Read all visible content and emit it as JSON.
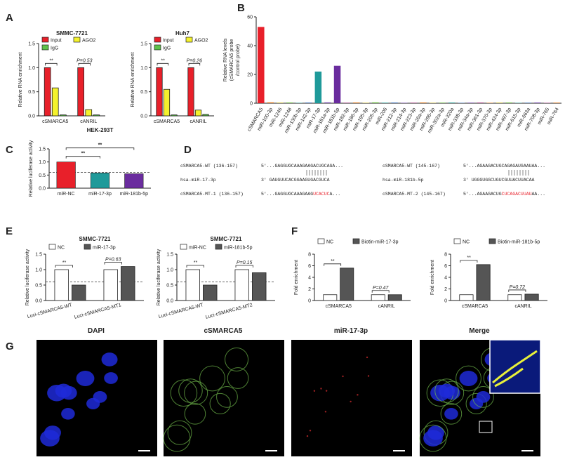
{
  "panel_labels": [
    "A",
    "B",
    "C",
    "D",
    "E",
    "F",
    "G"
  ],
  "chart_data": [
    {
      "type": "bar",
      "title": "SMMC-7721",
      "y_label": "Relative RNA enrichment",
      "categories": [
        "cSMARCA5",
        "cANRIL"
      ],
      "series": [
        {
          "name": "Input",
          "color": "#e8202a",
          "values": [
            1.0,
            1.0
          ]
        },
        {
          "name": "AGO2",
          "color": "#f4f22c",
          "values": [
            0.58,
            0.13
          ]
        },
        {
          "name": "IgG",
          "color": "#5fc24a",
          "values": [
            0.02,
            0.02
          ]
        }
      ],
      "ylim": [
        0,
        1.5
      ],
      "yticks": [
        {
          "value": 0,
          "label": "0.0"
        },
        {
          "value": 0.5,
          "label": "0.5"
        },
        {
          "value": 1,
          "label": "1.0"
        },
        {
          "value": 1.5,
          "label": "1.5"
        }
      ],
      "annotations": [
        "**",
        "P=0.53"
      ]
    },
    {
      "type": "bar",
      "title": "Huh7",
      "y_label": "Relative RNA enrichment",
      "categories": [
        "cSMARCA5",
        "cANRIL"
      ],
      "series": [
        {
          "name": "Input",
          "color": "#e8202a",
          "values": [
            1.0,
            1.0
          ]
        },
        {
          "name": "AGO2",
          "color": "#f4f22c",
          "values": [
            0.55,
            0.12
          ]
        },
        {
          "name": "IgG",
          "color": "#5fc24a",
          "values": [
            0.02,
            0.03
          ]
        }
      ],
      "ylim": [
        0,
        1.5
      ],
      "yticks": [
        {
          "value": 0,
          "label": "0.0"
        },
        {
          "value": 0.5,
          "label": "0.5"
        },
        {
          "value": 1,
          "label": "1.0"
        },
        {
          "value": 1.5,
          "label": "1.5"
        }
      ],
      "annotations": [
        "**",
        "P=0.26"
      ]
    },
    {
      "type": "bar",
      "y_label": [
        "Relative RNA levels",
        "(cSMARCA5 probe",
        "/control probe)"
      ],
      "categories": [
        "cSMARCA5",
        "miR-100-3p",
        "miR-1246",
        "miR-1248",
        "miR-130b-3p",
        "miR-142-3p",
        "miR-17-3p",
        "miR-181a-3p",
        "miR-181b-5p",
        "miR-182-3p",
        "miR-186-3p",
        "miR-195-3p",
        "miR-205-3p",
        "miR-206",
        "miR-212-3p",
        "miR-214-3p",
        "miR-223-3p",
        "miR-26a-3p",
        "miR-296-3p",
        "miR-302a-3p",
        "miR-320a",
        "miR-338-3p",
        "miR-34a-3p",
        "miR-361-3p",
        "miR-370-3p",
        "miR-424-3p",
        "miR-497-3p",
        "miR-615-3p",
        "miR-663a",
        "miR-708-3p",
        "miR-765",
        "miR-764"
      ],
      "values": [
        53,
        0.6,
        0.4,
        0.5,
        0.3,
        0.5,
        22,
        0.6,
        26,
        0.4,
        0.5,
        0.3,
        0.6,
        0.4,
        0.5,
        0.3,
        0.4,
        0.5,
        0.3,
        0.4,
        0.5,
        0.3,
        0.4,
        0.5,
        0.3,
        0.4,
        0.5,
        0.3,
        0.4,
        0.5,
        0.3,
        0.4
      ],
      "colors": [
        "#e8202a",
        "#e07b20",
        "#c9b62a",
        "#6dbb45",
        "#3aa6a0",
        "#4f7fc0",
        "#1f9a9a",
        "#7a4fb0",
        "#6a2c9e",
        "#b04f8f",
        "#e07b20",
        "#c9b62a",
        "#6dbb45",
        "#3aa6a0",
        "#4f7fc0",
        "#7a4fb0",
        "#b04f8f",
        "#e07b20",
        "#c9b62a",
        "#6dbb45",
        "#3aa6a0",
        "#4f7fc0",
        "#7a4fb0",
        "#b04f8f",
        "#e07b20",
        "#c9b62a",
        "#6dbb45",
        "#3aa6a0",
        "#4f7fc0",
        "#7a4fb0",
        "#b04f8f",
        "#e07b20"
      ],
      "ylim": [
        0,
        60
      ],
      "yticks": [
        0,
        20,
        40,
        60
      ]
    },
    {
      "type": "bar",
      "title": "HEK-293T",
      "y_label": "Relative luciferase activity",
      "categories": [
        "miR-NC",
        "miR-17-3p",
        "miR-181b-5p"
      ],
      "values": [
        1.0,
        0.58,
        0.55
      ],
      "colors": [
        "#e8202a",
        "#1f9a9a",
        "#6a2c9e"
      ],
      "ylim": [
        0,
        1.5
      ],
      "yticks": [
        {
          "value": 0,
          "label": "0.0"
        },
        {
          "value": 0.5,
          "label": "0.5"
        },
        {
          "value": 1,
          "label": "1.0"
        },
        {
          "value": 1.5,
          "label": "1.5"
        }
      ],
      "reference_line": 0.6,
      "annotations": [
        "**",
        "**"
      ]
    },
    {
      "type": "bar",
      "title": "SMMC-7721",
      "y_label": "Relative luciferase activity",
      "categories": [
        "Luci-cSMARCA5-WT",
        "Luci-cSMARCA5-MT1"
      ],
      "series": [
        {
          "name": "NC",
          "color": "#ffffff",
          "values": [
            1.0,
            1.0
          ]
        },
        {
          "name": "miR-17-3p",
          "color": "#555555",
          "values": [
            0.5,
            1.1
          ]
        }
      ],
      "ylim": [
        0,
        1.5
      ],
      "yticks": [
        {
          "value": 0,
          "label": "0.0"
        },
        {
          "value": 0.5,
          "label": "0.5"
        },
        {
          "value": 1,
          "label": "1.0"
        },
        {
          "value": 1.5,
          "label": "1.5"
        }
      ],
      "reference_line": 0.6,
      "annotations": [
        "**",
        "P=0.63"
      ]
    },
    {
      "type": "bar",
      "title": "SMMC-7721",
      "y_label": "Relative luciferase activity",
      "categories": [
        "Luci-cSMARCA5-WT",
        "Luci-cSMARCA5-MT2"
      ],
      "series": [
        {
          "name": "miR-NC",
          "color": "#ffffff",
          "values": [
            1.0,
            1.0
          ]
        },
        {
          "name": "miR-181b-5p",
          "color": "#555555",
          "values": [
            0.5,
            0.9
          ]
        }
      ],
      "ylim": [
        0,
        1.5
      ],
      "yticks": [
        {
          "value": 0,
          "label": "0.0"
        },
        {
          "value": 0.5,
          "label": "0.5"
        },
        {
          "value": 1,
          "label": "1.0"
        },
        {
          "value": 1.5,
          "label": "1.5"
        }
      ],
      "reference_line": 0.6,
      "annotations": [
        "**",
        "P=0.15"
      ]
    },
    {
      "type": "bar",
      "y_label": "Fold enrichment",
      "categories": [
        "cSMARCA5",
        "cANRIL"
      ],
      "series": [
        {
          "name": "NC",
          "color": "#ffffff",
          "values": [
            1.0,
            1.0
          ]
        },
        {
          "name": "Biotin-miR-17-3p",
          "color": "#555555",
          "values": [
            5.6,
            1.0
          ]
        }
      ],
      "ylim": [
        0,
        8
      ],
      "yticks": [
        0,
        2,
        4,
        6,
        8
      ],
      "annotations": [
        "**",
        "P=0.47"
      ]
    },
    {
      "type": "bar",
      "y_label": "Fold enrichment",
      "categories": [
        "cSMARCA5",
        "cANRIL"
      ],
      "series": [
        {
          "name": "NC",
          "color": "#ffffff",
          "values": [
            1.0,
            1.0
          ]
        },
        {
          "name": "Biotin-miR-181b-5p",
          "color": "#555555",
          "values": [
            6.2,
            1.1
          ]
        }
      ],
      "ylim": [
        0,
        8
      ],
      "yticks": [
        0,
        2,
        4,
        6,
        8
      ],
      "annotations": [
        "**",
        "P=0.72"
      ]
    }
  ],
  "sequences": [
    [
      {
        "label": "cSMARCA5-WT (136-157)",
        "seq": "5'...GAGGUGCAAAGAAGACUGCAGA...",
        "mutated": "",
        "seq_end": ""
      },
      {
        "label": "hsa-miR-17-3p",
        "seq": "3' GAUGUUCACGGAAGUGACGUCA",
        "mutated": "",
        "seq_end": ""
      },
      {
        "label": "cSMARCA5-MT-1 (136-157)",
        "seq": "5'...GAGGUGCAAAGAAG",
        "mutated": "UCACUC",
        "seq_end": "A..."
      }
    ],
    [
      {
        "label": "cSMARCA5-WT (145-167)",
        "seq": "5'...AGAAGACUGCAGAGAUGAAUAA...",
        "mutated": "",
        "seq_end": ""
      },
      {
        "label": "hsa-miR-181b-5p",
        "seq": "3' UGGGUGGCUGUCGUUACUUACAA",
        "mutated": "",
        "seq_end": ""
      },
      {
        "label": "cSMARCA5-MT-2 (145-167)",
        "seq": "5'...AGAAGACUG",
        "mutated": "CUCAGACUUAU",
        "seq_end": "AA..."
      }
    ]
  ],
  "image_labels": [
    "DAPI",
    "cSMARCA5",
    "miR-17-3p",
    "Merge"
  ]
}
